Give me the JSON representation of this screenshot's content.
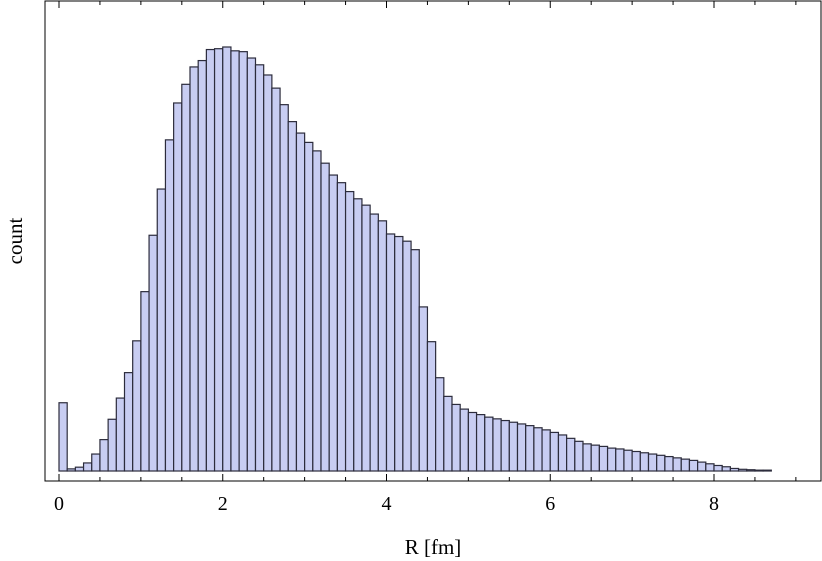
{
  "chart_data": {
    "type": "bar",
    "xlabel": "R [fm]",
    "ylabel": "count",
    "xlim": [
      -0.15,
      9.2
    ],
    "ylim": [
      0,
      1.0
    ],
    "x_ticks": [
      0,
      2,
      4,
      6,
      8
    ],
    "x_tick_labels": [
      "0",
      "2",
      "4",
      "6",
      "8"
    ],
    "bin_width": 0.1,
    "bin_start": 0.0,
    "colors": {
      "bar_fill": "#c8cdf2",
      "bar_stroke": "#2c2c3c"
    },
    "values": [
      0.161,
      0.005,
      0.009,
      0.019,
      0.04,
      0.074,
      0.122,
      0.172,
      0.232,
      0.307,
      0.423,
      0.556,
      0.665,
      0.781,
      0.868,
      0.912,
      0.953,
      0.968,
      0.994,
      0.996,
      1.0,
      0.991,
      0.989,
      0.974,
      0.958,
      0.934,
      0.903,
      0.864,
      0.824,
      0.797,
      0.775,
      0.755,
      0.726,
      0.698,
      0.68,
      0.659,
      0.642,
      0.627,
      0.606,
      0.59,
      0.559,
      0.553,
      0.542,
      0.522,
      0.387,
      0.305,
      0.22,
      0.176,
      0.157,
      0.146,
      0.138,
      0.133,
      0.127,
      0.123,
      0.119,
      0.115,
      0.111,
      0.107,
      0.102,
      0.097,
      0.091,
      0.085,
      0.077,
      0.07,
      0.064,
      0.061,
      0.058,
      0.054,
      0.052,
      0.049,
      0.046,
      0.043,
      0.04,
      0.037,
      0.034,
      0.031,
      0.028,
      0.025,
      0.021,
      0.017,
      0.013,
      0.01,
      0.006,
      0.004,
      0.003,
      0.002,
      0.002
    ]
  }
}
